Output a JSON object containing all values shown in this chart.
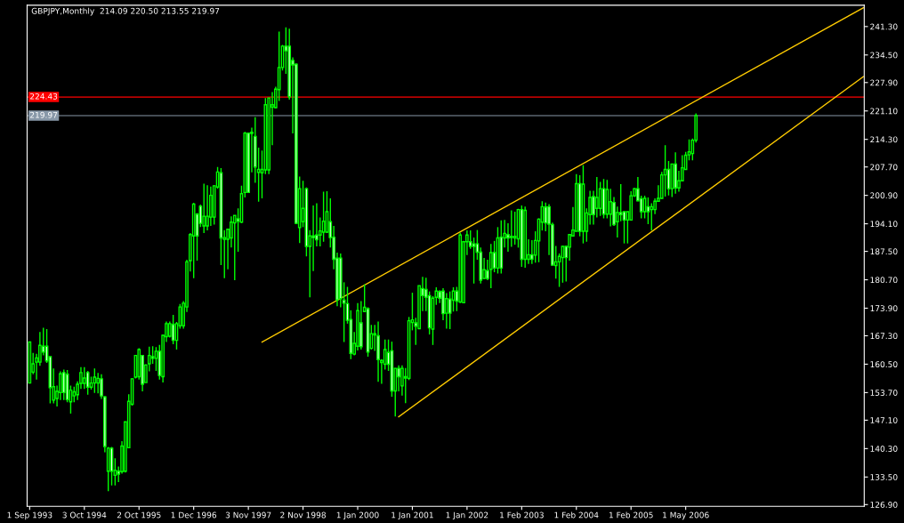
{
  "chart_data": {
    "type": "candlestick",
    "title": "GBPJPY,Monthly  214.09 220.50 213.55 219.97",
    "ylim": [
      126.5,
      246.4
    ],
    "categories": [
      "1 Sep 1993",
      null,
      null,
      null,
      null,
      null,
      null,
      null,
      null,
      null,
      null,
      null,
      null,
      null,
      null,
      null,
      "3 Oct 1994",
      null,
      null,
      null,
      null,
      null,
      null,
      null,
      null,
      null,
      null,
      null,
      null,
      null,
      null,
      null,
      "2 Oct 1995",
      null,
      null,
      null,
      null,
      null,
      null,
      null,
      null,
      null,
      null,
      null,
      null,
      null,
      null,
      null,
      "1 Dec 1996",
      null,
      null,
      null,
      null,
      null,
      null,
      null,
      null,
      null,
      null,
      null,
      null,
      null,
      null,
      null,
      "3 Nov 1997",
      null,
      null,
      null,
      null,
      null,
      null,
      null,
      null,
      null,
      null,
      null,
      null,
      null,
      null,
      null,
      "2 Nov 1998",
      null,
      null,
      null,
      null,
      null,
      null,
      null,
      null,
      null,
      null,
      null,
      null,
      null,
      null,
      null,
      "1 Jan 2000",
      null,
      null,
      null,
      null,
      null,
      null,
      null,
      null,
      null,
      null,
      null,
      null,
      null,
      null,
      null,
      "1 Jan 2001",
      null,
      null,
      null,
      null,
      null,
      null,
      null,
      null,
      null,
      null,
      null,
      null,
      null,
      null,
      null,
      "1 Jan 2002",
      null,
      null,
      null,
      null,
      null,
      null,
      null,
      null,
      null,
      null,
      null,
      null,
      null,
      null,
      null,
      "1 Feb 2003",
      null,
      null,
      null,
      null,
      null,
      null,
      null,
      null,
      null,
      null,
      null,
      null,
      null,
      null,
      null,
      "1 Feb 2004",
      null,
      null,
      null,
      null,
      null,
      null,
      null,
      null,
      null,
      null,
      null,
      null,
      null,
      null,
      null,
      "1 Feb 2005",
      null,
      null,
      null,
      null,
      null,
      null,
      null,
      null,
      null,
      null,
      null,
      null,
      null,
      null,
      null,
      "1 May 2006",
      null,
      null,
      null,
      null,
      null,
      null,
      null,
      null,
      null,
      null,
      null,
      null,
      null,
      null,
      null,
      null,
      null,
      null,
      null,
      null,
      null,
      null,
      null,
      null,
      null,
      null,
      null,
      null,
      null,
      null,
      null,
      null,
      null,
      null,
      null,
      null,
      null,
      null,
      null,
      null,
      null,
      null,
      null,
      null,
      null,
      null,
      null,
      null,
      null,
      null,
      null,
      null
    ],
    "yticks": [
      {
        "value": 126.9,
        "label": "126.90"
      },
      {
        "value": 133.5,
        "label": "133.50"
      },
      {
        "value": 140.3,
        "label": "140.30"
      },
      {
        "value": 147.1,
        "label": "147.10"
      },
      {
        "value": 153.7,
        "label": "153.70"
      },
      {
        "value": 160.5,
        "label": "160.50"
      },
      {
        "value": 167.3,
        "label": "167.30"
      },
      {
        "value": 173.9,
        "label": "173.90"
      },
      {
        "value": 180.7,
        "label": "180.70"
      },
      {
        "value": 187.5,
        "label": "187.50"
      },
      {
        "value": 194.1,
        "label": "194.10"
      },
      {
        "value": 200.9,
        "label": "200.90"
      },
      {
        "value": 207.7,
        "label": "207.70"
      },
      {
        "value": 214.3,
        "label": "214.30"
      },
      {
        "value": 221.1,
        "label": "221.10"
      },
      {
        "value": 227.9,
        "label": "227.90"
      },
      {
        "value": 234.5,
        "label": "234.50"
      },
      {
        "value": 241.3,
        "label": "241.30"
      }
    ],
    "ref_lines": [
      {
        "axis": "y",
        "value": 224.43,
        "label": "224.43",
        "color": "#ff0000"
      },
      {
        "axis": "y",
        "value": 219.97,
        "label": "219.97",
        "color": "#8898a8"
      }
    ],
    "series": [
      {
        "type": "line",
        "color": "#ffcc00",
        "values": [
          null,
          null,
          null,
          null,
          null,
          null,
          null,
          null,
          null,
          null,
          null,
          null,
          null,
          null,
          null,
          null,
          null,
          null,
          null,
          null,
          null,
          null,
          null,
          null,
          null,
          null,
          null,
          null,
          null,
          null,
          null,
          null,
          null,
          null,
          null,
          null,
          null,
          null,
          null,
          null,
          null,
          null,
          null,
          null,
          null,
          null,
          null,
          null,
          null,
          null,
          null,
          null,
          null,
          null,
          null,
          null,
          null,
          null,
          null,
          null,
          null,
          null,
          null,
          null,
          null,
          null,
          null,
          null,
          165.8,
          null,
          null,
          null,
          null,
          null,
          null,
          null,
          null,
          null,
          null,
          null,
          null,
          null,
          null,
          null,
          null,
          null,
          null,
          null,
          null,
          null,
          null,
          null,
          null,
          null,
          null,
          null,
          null,
          null,
          null,
          null,
          null,
          null,
          null,
          null,
          null,
          null,
          null,
          null,
          null,
          null,
          null,
          null,
          null,
          null,
          null,
          null,
          null,
          null,
          null,
          null,
          null,
          null,
          null,
          null,
          null,
          null,
          null,
          null,
          null,
          null,
          null,
          null,
          null,
          null,
          null,
          null,
          null,
          null,
          null,
          null,
          null,
          null,
          null,
          null,
          null,
          null,
          null,
          null,
          null,
          null,
          null,
          null,
          null,
          null,
          null,
          null,
          null,
          null,
          null,
          null,
          null,
          null,
          null,
          null,
          null,
          null,
          null,
          null,
          null,
          null,
          null,
          null,
          null,
          null,
          null,
          null,
          null,
          null,
          null,
          null,
          null,
          null,
          null,
          null,
          null,
          null,
          null,
          null,
          null,
          null,
          null,
          null,
          null,
          null,
          null,
          null,
          null,
          null,
          null,
          null,
          null,
          null,
          null,
          null,
          null,
          null,
          null,
          null,
          null,
          null,
          null,
          null,
          null,
          null,
          null,
          null,
          null,
          null,
          null,
          null,
          null,
          null,
          null,
          null,
          null,
          null,
          null,
          null,
          null,
          null,
          null,
          null,
          null,
          null,
          null,
          null,
          null,
          null,
          null,
          null,
          null,
          null,
          null,
          null,
          245.8
        ]
      },
      {
        "type": "line",
        "color": "#ffcc00",
        "values": [
          null,
          null,
          null,
          null,
          null,
          null,
          null,
          null,
          null,
          null,
          null,
          null,
          null,
          null,
          null,
          null,
          null,
          null,
          null,
          null,
          null,
          null,
          null,
          null,
          null,
          null,
          null,
          null,
          null,
          null,
          null,
          null,
          null,
          null,
          null,
          null,
          null,
          null,
          null,
          null,
          null,
          null,
          null,
          null,
          null,
          null,
          null,
          null,
          null,
          null,
          null,
          null,
          null,
          null,
          null,
          null,
          null,
          null,
          null,
          null,
          null,
          null,
          null,
          null,
          null,
          null,
          null,
          null,
          null,
          null,
          null,
          null,
          null,
          null,
          null,
          null,
          null,
          null,
          null,
          null,
          null,
          null,
          null,
          null,
          null,
          null,
          null,
          null,
          null,
          null,
          null,
          null,
          null,
          null,
          null,
          null,
          null,
          null,
          null,
          null,
          null,
          null,
          null,
          null,
          null,
          null,
          null,
          null,
          147.9,
          null,
          null,
          null,
          null,
          null,
          null,
          null,
          null,
          null,
          null,
          null,
          null,
          null,
          null,
          null,
          null,
          null,
          null,
          null,
          null,
          null,
          null,
          null,
          null,
          null,
          null,
          null,
          null,
          null,
          null,
          null,
          null,
          null,
          null,
          null,
          null,
          null,
          null,
          null,
          null,
          null,
          null,
          null,
          null,
          null,
          null,
          null,
          null,
          null,
          null,
          null,
          null,
          null,
          null,
          null,
          null,
          null,
          null,
          null,
          null,
          null,
          null,
          null,
          null,
          null,
          null,
          null,
          null,
          null,
          null,
          null,
          null,
          null,
          null,
          null,
          null,
          null,
          null,
          null,
          null,
          null,
          null,
          null,
          null,
          null,
          null,
          null,
          null,
          null,
          null,
          null,
          null,
          null,
          null,
          null,
          null,
          null,
          null,
          null,
          null,
          null,
          null,
          null,
          null,
          null,
          null,
          null,
          null,
          null,
          null,
          null,
          null,
          null,
          null,
          null,
          null,
          null,
          null,
          null,
          null,
          null,
          null,
          null,
          null,
          null,
          null,
          null,
          null,
          null,
          null,
          null,
          null,
          null,
          null,
          null,
          229.3
        ]
      },
      {
        "color": "#00ff00",
        "ohlc": [
          [
            156.0,
            165.8,
            156.0,
            165.8
          ],
          [
            158.6,
            163.2,
            158.1,
            160.6
          ],
          [
            161.0,
            163.0,
            156.8,
            162.0
          ],
          [
            161.0,
            168.2,
            160.1,
            165.0
          ],
          [
            164.8,
            169.2,
            162.6,
            163.4
          ],
          [
            164.8,
            168.9,
            160.8,
            161.3
          ],
          [
            162.3,
            162.3,
            151.1,
            154.9
          ],
          [
            151.9,
            159.5,
            151.1,
            155.1
          ],
          [
            152.3,
            155.4,
            150.4,
            154.0
          ],
          [
            153.7,
            158.8,
            151.9,
            158.2
          ],
          [
            158.5,
            159.2,
            151.9,
            153.7
          ],
          [
            158.1,
            159.1,
            151.4,
            152.0
          ],
          [
            151.5,
            155.4,
            148.7,
            154.3
          ],
          [
            152.9,
            155.1,
            151.4,
            153.9
          ],
          [
            153.2,
            156.4,
            151.9,
            155.7
          ],
          [
            155.9,
            159.8,
            154.6,
            158.5
          ],
          [
            155.9,
            159.8,
            154.6,
            157.2
          ],
          [
            158.5,
            158.9,
            153.2,
            155.0
          ],
          [
            155.0,
            157.5,
            154.4,
            156.0
          ],
          [
            156.0,
            159.5,
            153.6,
            157.4
          ],
          [
            156.0,
            158.4,
            153.5,
            157.1
          ],
          [
            157.0,
            158.1,
            152.2,
            152.9
          ],
          [
            152.7,
            152.9,
            139.4,
            140.8
          ],
          [
            134.9,
            140.7,
            130.1,
            140.4
          ],
          [
            140.4,
            140.7,
            131.5,
            134.9
          ],
          [
            133.9,
            138.0,
            131.5,
            135.1
          ],
          [
            134.9,
            136.0,
            132.3,
            134.2
          ],
          [
            134.8,
            142.1,
            134.3,
            140.9
          ],
          [
            134.9,
            146.7,
            134.6,
            146.7
          ],
          [
            140.5,
            153.3,
            140.4,
            151.6
          ],
          [
            150.9,
            157.1,
            150.6,
            157.0
          ],
          [
            157.4,
            162.7,
            157.1,
            162.6
          ],
          [
            157.5,
            164.3,
            156.8,
            164.0
          ],
          [
            162.6,
            162.6,
            154.0,
            155.7
          ],
          [
            156.1,
            160.5,
            156.1,
            160.3
          ],
          [
            160.6,
            164.7,
            158.8,
            162.6
          ],
          [
            162.3,
            164.8,
            160.6,
            161.9
          ],
          [
            161.9,
            164.6,
            158.9,
            163.6
          ],
          [
            163.6,
            165.1,
            156.8,
            157.8
          ],
          [
            157.5,
            167.6,
            156.1,
            167.4
          ],
          [
            167.1,
            170.7,
            165.8,
            170.2
          ],
          [
            167.2,
            170.7,
            166.9,
            170.2
          ],
          [
            170.0,
            172.3,
            165.3,
            166.2
          ],
          [
            166.2,
            170.6,
            164.0,
            170.2
          ],
          [
            169.7,
            174.9,
            169.0,
            174.2
          ],
          [
            169.7,
            175.6,
            169.0,
            175.1
          ],
          [
            174.2,
            185.5,
            173.0,
            185.0
          ],
          [
            185.3,
            191.9,
            182.7,
            191.5
          ],
          [
            191.2,
            199.1,
            181.1,
            198.8
          ],
          [
            196.4,
            196.7,
            185.3,
            191.2
          ],
          [
            198.3,
            198.7,
            193.3,
            194.2
          ],
          [
            193.6,
            203.7,
            191.9,
            195.9
          ],
          [
            193.6,
            203.3,
            192.5,
            195.9
          ],
          [
            195.7,
            203.0,
            193.6,
            200.9
          ],
          [
            195.7,
            203.3,
            193.9,
            203.2
          ],
          [
            202.9,
            207.7,
            202.5,
            206.5
          ],
          [
            206.3,
            207.4,
            184.2,
            190.7
          ],
          [
            190.4,
            192.6,
            181.1,
            190.8
          ],
          [
            190.4,
            192.9,
            183.2,
            192.8
          ],
          [
            190.7,
            195.9,
            188.4,
            194.5
          ],
          [
            194.3,
            196.1,
            180.6,
            196.1
          ],
          [
            195.3,
            197.8,
            187.4,
            194.7
          ],
          [
            194.5,
            203.2,
            194.3,
            201.3
          ],
          [
            201.6,
            216.1,
            200.4,
            215.8
          ],
          [
            215.8,
            215.8,
            201.5,
            201.6
          ],
          [
            215.7,
            217.1,
            206.4,
            216.0
          ],
          [
            215.0,
            219.6,
            203.9,
            207.7
          ],
          [
            206.4,
            212.3,
            199.4,
            207.1
          ],
          [
            206.3,
            211.6,
            200.2,
            207.1
          ],
          [
            207.0,
            224.2,
            206.0,
            222.6
          ],
          [
            207.0,
            224.2,
            206.0,
            224.2
          ],
          [
            222.0,
            225.6,
            212.9,
            222.6
          ],
          [
            221.9,
            226.9,
            221.7,
            226.3
          ],
          [
            226.2,
            240.1,
            223.5,
            231.5
          ],
          [
            231.5,
            236.9,
            230.8,
            236.6
          ],
          [
            236.6,
            241.1,
            230.0,
            235.5
          ],
          [
            236.6,
            240.8,
            223.8,
            224.5
          ],
          [
            233.2,
            233.9,
            215.7,
            232.1
          ],
          [
            232.3,
            232.5,
            194.0,
            194.2
          ],
          [
            193.2,
            205.4,
            189.5,
            202.5
          ],
          [
            194.6,
            204.4,
            193.3,
            197.8
          ],
          [
            202.5,
            202.8,
            186.3,
            188.7
          ],
          [
            188.7,
            192.6,
            176.5,
            191.2
          ],
          [
            191.2,
            198.5,
            182.8,
            190.8
          ],
          [
            191.4,
            199.0,
            188.7,
            190.3
          ],
          [
            191.4,
            195.6,
            188.7,
            192.4
          ],
          [
            192.1,
            201.8,
            189.8,
            194.7
          ],
          [
            192.1,
            201.9,
            191.9,
            197.0
          ],
          [
            194.6,
            200.2,
            188.4,
            190.8
          ],
          [
            190.9,
            193.6,
            183.2,
            185.6
          ],
          [
            185.9,
            187.2,
            174.4,
            175.9
          ],
          [
            185.9,
            187.0,
            174.1,
            176.2
          ],
          [
            175.8,
            180.1,
            165.8,
            175.1
          ],
          [
            175.0,
            179.0,
            170.2,
            171.0
          ],
          [
            171.2,
            173.4,
            161.7,
            163.1
          ],
          [
            162.9,
            168.2,
            162.6,
            165.5
          ],
          [
            164.8,
            175.1,
            163.8,
            173.3
          ],
          [
            170.4,
            175.6,
            164.0,
            164.7
          ],
          [
            173.1,
            179.6,
            173.1,
            174.1
          ],
          [
            173.8,
            174.1,
            162.3,
            163.4
          ],
          [
            164.3,
            169.9,
            164.0,
            167.8
          ],
          [
            167.8,
            169.9,
            163.7,
            167.5
          ],
          [
            167.3,
            170.7,
            156.3,
            161.6
          ],
          [
            160.9,
            161.7,
            155.8,
            161.4
          ],
          [
            160.5,
            166.4,
            159.2,
            164.0
          ],
          [
            163.3,
            166.4,
            158.9,
            160.5
          ],
          [
            163.7,
            165.9,
            152.7,
            154.1
          ],
          [
            154.1,
            159.6,
            148.0,
            159.5
          ],
          [
            159.5,
            160.2,
            154.0,
            157.5
          ],
          [
            155.3,
            160.2,
            153.0,
            159.5
          ],
          [
            157.5,
            159.6,
            151.2,
            157.2
          ],
          [
            157.1,
            171.8,
            156.7,
            170.9
          ],
          [
            170.5,
            177.6,
            168.6,
            171.1
          ],
          [
            170.4,
            171.6,
            165.1,
            169.6
          ],
          [
            169.0,
            179.3,
            168.9,
            179.3
          ],
          [
            178.6,
            181.4,
            173.2,
            176.9
          ],
          [
            178.4,
            181.2,
            173.2,
            176.5
          ],
          [
            176.9,
            177.9,
            167.6,
            169.2
          ],
          [
            168.9,
            176.8,
            165.1,
            176.3
          ],
          [
            176.5,
            178.9,
            174.7,
            178.0
          ],
          [
            177.9,
            178.2,
            175.1,
            176.3
          ],
          [
            178.0,
            178.7,
            171.0,
            172.6
          ],
          [
            172.7,
            177.5,
            169.0,
            176.2
          ],
          [
            176.1,
            177.9,
            168.9,
            172.7
          ],
          [
            175.8,
            178.9,
            173.1,
            178.0
          ],
          [
            178.0,
            179.0,
            173.2,
            175.6
          ],
          [
            175.4,
            192.0,
            175.1,
            191.4
          ],
          [
            175.2,
            190.0,
            175.1,
            189.8
          ],
          [
            189.8,
            192.5,
            186.6,
            191.4
          ],
          [
            189.8,
            192.5,
            188.1,
            188.7
          ],
          [
            189.3,
            190.8,
            179.8,
            188.7
          ],
          [
            189.3,
            192.6,
            185.5,
            187.3
          ],
          [
            187.3,
            188.4,
            179.8,
            180.6
          ],
          [
            181.0,
            185.9,
            180.8,
            183.1
          ],
          [
            182.9,
            185.5,
            180.6,
            181.0
          ],
          [
            183.2,
            189.3,
            178.7,
            187.2
          ],
          [
            187.2,
            190.0,
            182.5,
            183.5
          ],
          [
            183.5,
            193.3,
            182.2,
            190.7
          ],
          [
            190.9,
            194.9,
            182.2,
            183.5
          ],
          [
            190.7,
            195.0,
            188.4,
            191.8
          ],
          [
            191.5,
            194.2,
            187.4,
            190.7
          ],
          [
            190.8,
            197.3,
            188.6,
            191.1
          ],
          [
            190.7,
            197.0,
            189.1,
            191.1
          ],
          [
            190.5,
            197.7,
            188.4,
            197.5
          ],
          [
            197.5,
            198.5,
            183.8,
            185.6
          ],
          [
            185.6,
            198.2,
            183.6,
            197.3
          ],
          [
            185.6,
            190.4,
            184.5,
            186.7
          ],
          [
            186.7,
            190.2,
            184.5,
            185.6
          ],
          [
            186.6,
            192.3,
            184.8,
            190.1
          ],
          [
            190.0,
            195.4,
            184.9,
            195.2
          ],
          [
            194.5,
            199.5,
            192.5,
            198.2
          ],
          [
            198.1,
            199.2,
            192.3,
            194.3
          ],
          [
            198.2,
            198.8,
            186.6,
            194.0
          ],
          [
            193.9,
            194.4,
            184.1,
            184.2
          ],
          [
            184.1,
            188.8,
            181.0,
            185.0
          ],
          [
            185.0,
            187.0,
            179.0,
            186.3
          ],
          [
            186.0,
            188.8,
            180.0,
            188.7
          ],
          [
            188.7,
            188.8,
            180.3,
            186.0
          ],
          [
            188.5,
            191.5,
            185.3,
            191.5
          ],
          [
            191.2,
            198.1,
            191.2,
            192.6
          ],
          [
            192.3,
            206.0,
            192.3,
            203.7
          ],
          [
            203.7,
            205.7,
            191.1,
            192.3
          ],
          [
            192.3,
            208.1,
            189.4,
            203.6
          ],
          [
            192.3,
            197.8,
            189.8,
            196.7
          ],
          [
            196.3,
            202.0,
            193.9,
            200.4
          ],
          [
            200.6,
            202.0,
            193.9,
            196.3
          ],
          [
            197.8,
            205.3,
            195.6,
            200.4
          ],
          [
            197.8,
            204.1,
            196.0,
            202.5
          ],
          [
            202.5,
            204.8,
            195.4,
            196.4
          ],
          [
            196.4,
            204.6,
            195.4,
            202.3
          ],
          [
            196.4,
            202.5,
            193.5,
            199.4
          ],
          [
            199.2,
            200.5,
            193.6,
            193.9
          ],
          [
            194.6,
            198.2,
            190.8,
            196.8
          ],
          [
            196.8,
            203.6,
            194.7,
            196.3
          ],
          [
            197.0,
            197.1,
            189.4,
            195.0
          ],
          [
            195.0,
            197.0,
            189.4,
            197.0
          ],
          [
            195.0,
            201.9,
            195.0,
            200.8
          ],
          [
            200.8,
            202.7,
            200.5,
            202.5
          ],
          [
            202.5,
            205.3,
            199.5,
            199.6
          ],
          [
            200.1,
            200.8,
            195.4,
            197.0
          ],
          [
            197.0,
            200.8,
            195.4,
            200.2
          ],
          [
            198.2,
            200.4,
            194.0,
            197.0
          ],
          [
            197.5,
            199.0,
            192.5,
            198.2
          ],
          [
            197.5,
            200.2,
            196.4,
            199.5
          ],
          [
            199.5,
            203.3,
            199.4,
            200.2
          ],
          [
            200.2,
            206.5,
            200.1,
            205.8
          ],
          [
            205.8,
            212.9,
            200.6,
            207.1
          ],
          [
            207.1,
            209.1,
            200.9,
            202.5
          ],
          [
            202.5,
            208.5,
            200.5,
            208.4
          ],
          [
            208.4,
            211.2,
            201.3,
            202.7
          ],
          [
            202.7,
            206.8,
            201.8,
            204.4
          ],
          [
            204.4,
            210.5,
            204.4,
            207.5
          ],
          [
            207.1,
            211.3,
            207.1,
            210.5
          ],
          [
            210.6,
            214.3,
            209.3,
            211.3
          ],
          [
            210.9,
            214.5,
            209.3,
            214.1
          ],
          [
            214.09,
            220.5,
            213.55,
            219.97
          ],
          null,
          null,
          null,
          null,
          null,
          null,
          null,
          null,
          null,
          null,
          null,
          null,
          null,
          null,
          null,
          null,
          null,
          null,
          null,
          null,
          null,
          null,
          null,
          null,
          null,
          null,
          null,
          null,
          null,
          null,
          null,
          null,
          null,
          null,
          null,
          null,
          null,
          null,
          null,
          null,
          null,
          null,
          null,
          null,
          null,
          null,
          null,
          null,
          null
        ]
      }
    ]
  }
}
